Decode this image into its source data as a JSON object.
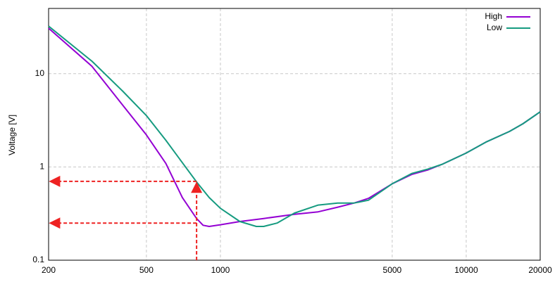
{
  "chart_data": {
    "type": "line",
    "y_label": "Voltage [V]",
    "x_scale": "log",
    "y_scale": "log",
    "xlim": [
      200,
      20000
    ],
    "ylim": [
      0.1,
      50
    ],
    "xticks": [
      200,
      500,
      1000,
      5000,
      10000,
      20000
    ],
    "yticks": [
      0.1,
      1,
      10
    ],
    "grid": true,
    "legend": "top-right",
    "series": [
      {
        "name": "High",
        "color": "#9400d3",
        "x": [
          200,
          300,
          400,
          500,
          600,
          700,
          800,
          850,
          900,
          1000,
          1200,
          1500,
          2000,
          2500,
          3000,
          3500,
          4000,
          5000,
          6000,
          7000,
          8000,
          10000,
          12000,
          15000,
          17000,
          20000
        ],
        "values": [
          30.7,
          12,
          4.6,
          2.2,
          1.09,
          0.47,
          0.28,
          0.237,
          0.23,
          0.24,
          0.26,
          0.28,
          0.31,
          0.33,
          0.37,
          0.41,
          0.46,
          0.66,
          0.83,
          0.93,
          1.07,
          1.41,
          1.84,
          2.4,
          2.9,
          3.9
        ]
      },
      {
        "name": "Low",
        "color": "#169b80",
        "x": [
          200,
          300,
          400,
          500,
          600,
          700,
          800,
          900,
          1000,
          1200,
          1400,
          1500,
          1700,
          2000,
          2500,
          3000,
          3500,
          4000,
          5000,
          6000,
          7000,
          8000,
          10000,
          12000,
          15000,
          17000,
          20000
        ],
        "values": [
          32.3,
          13.6,
          6.5,
          3.55,
          1.93,
          1.11,
          0.69,
          0.47,
          0.36,
          0.26,
          0.23,
          0.23,
          0.25,
          0.32,
          0.39,
          0.41,
          0.41,
          0.44,
          0.66,
          0.85,
          0.95,
          1.07,
          1.41,
          1.84,
          2.4,
          2.9,
          3.9
        ]
      }
    ],
    "markers": [
      {
        "x": 800,
        "y": 0.7,
        "color": "#ee2222"
      },
      {
        "x": 800,
        "y": 0.25,
        "color": "#ee2222"
      }
    ]
  }
}
